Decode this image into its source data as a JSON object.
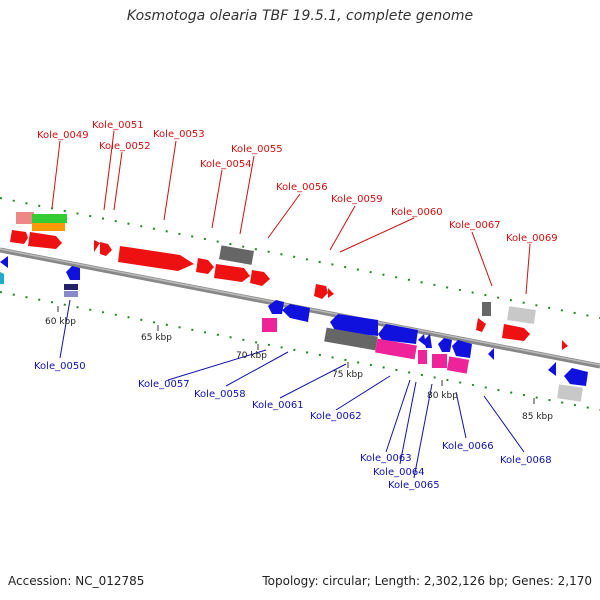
{
  "title": "Kosmotoga olearia TBF 19.5.1, complete genome",
  "footer": {
    "accession": "Accession: NC_012785",
    "info": "Topology: circular; Length: 2,302,126 bp; Genes: 2,170"
  },
  "colors": {
    "forward": "#ee1111",
    "reverse": "#1111dd",
    "pseudo": "#666666",
    "pink": "#ee2299",
    "light_gray": "#c8c8c8",
    "green": "#33cc33",
    "orange": "#ff9900",
    "salmon": "#ee8888",
    "backbone": "#888888",
    "tick": "#228822"
  },
  "scale_labels": [
    "60 kbp",
    "65 kbp",
    "70 kbp",
    "75 kbp",
    "80 kbp",
    "85 kbp"
  ],
  "top_labels": [
    "Kole_0049",
    "Kole_0051",
    "Kole_0052",
    "Kole_0053",
    "Kole_0054",
    "Kole_0055",
    "Kole_0056",
    "Kole_0059",
    "Kole_0060",
    "Kole_0067",
    "Kole_0069"
  ],
  "bottom_labels": [
    "Kole_0050",
    "Kole_0057",
    "Kole_0058",
    "Kole_0061",
    "Kole_0062",
    "Kole_0063",
    "Kole_0064",
    "Kole_0065",
    "Kole_0066",
    "Kole_0068"
  ]
}
